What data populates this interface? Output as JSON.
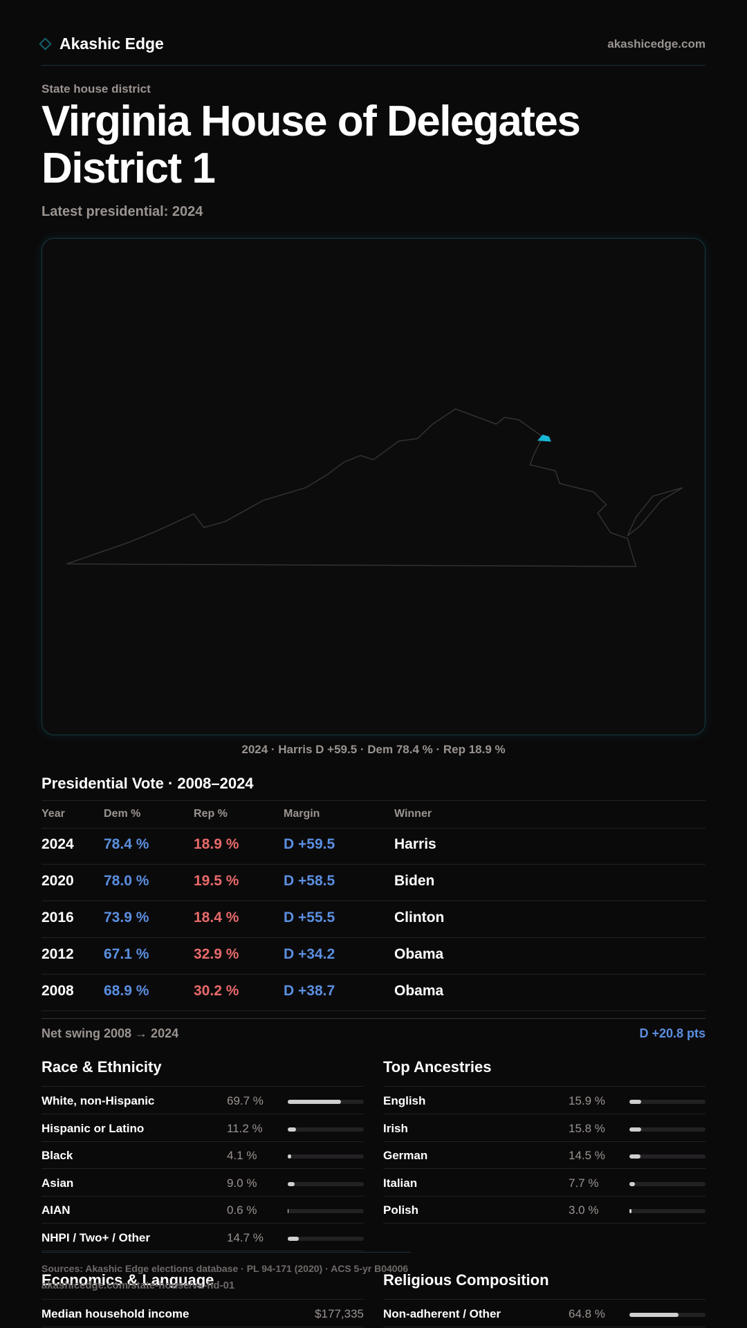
{
  "header": {
    "brand": "Akashic Edge",
    "site": "akashicedge.com"
  },
  "kicker": "State house district",
  "title": "Virginia House of Delegates District 1",
  "subtitle": "Latest presidential: 2024",
  "map_caption": "2024 · Harris D +59.5 · Dem 78.4 % · Rep 18.9 %",
  "presidential": {
    "title": "Presidential Vote · 2008–2024",
    "columns": [
      "Year",
      "Dem %",
      "Rep %",
      "Margin",
      "Winner"
    ],
    "rows": [
      [
        "2024",
        "78.4 %",
        "18.9 %",
        "D +59.5",
        "Harris"
      ],
      [
        "2020",
        "78.0 %",
        "19.5 %",
        "D +58.5",
        "Biden"
      ],
      [
        "2016",
        "73.9 %",
        "18.4 %",
        "D +55.5",
        "Clinton"
      ],
      [
        "2012",
        "67.1 %",
        "32.9 %",
        "D +34.2",
        "Obama"
      ],
      [
        "2008",
        "68.9 %",
        "30.2 %",
        "D +38.7",
        "Obama"
      ]
    ]
  },
  "net_swing": {
    "label": "Net swing 2008 → 2024",
    "value": "D +20.8 pts"
  },
  "race": {
    "title": "Race & Ethnicity",
    "xlim": [
      0,
      100
    ],
    "rows": [
      {
        "label": "White, non-Hispanic",
        "value": 69.7,
        "value_label": "69.7 %"
      },
      {
        "label": "Hispanic or Latino",
        "value": 11.2,
        "value_label": "11.2 %"
      },
      {
        "label": "Black",
        "value": 4.1,
        "value_label": "4.1 %"
      },
      {
        "label": "Asian",
        "value": 9.0,
        "value_label": "9.0 %"
      },
      {
        "label": "AIAN",
        "value": 0.6,
        "value_label": "0.6 %"
      },
      {
        "label": "NHPI / Two+ / Other",
        "value": 14.7,
        "value_label": "14.7 %"
      }
    ]
  },
  "ancestries": {
    "title": "Top Ancestries",
    "xlim": [
      0,
      100
    ],
    "rows": [
      {
        "label": "English",
        "value": 15.9,
        "value_label": "15.9 %"
      },
      {
        "label": "Irish",
        "value": 15.8,
        "value_label": "15.8 %"
      },
      {
        "label": "German",
        "value": 14.5,
        "value_label": "14.5 %"
      },
      {
        "label": "Italian",
        "value": 7.7,
        "value_label": "7.7 %"
      },
      {
        "label": "Polish",
        "value": 3.0,
        "value_label": "3.0 %"
      }
    ]
  },
  "footer": {
    "sources": "Sources: Akashic Edge elections database · PL 94-171 (2020) · ACS 5-yr B04006",
    "url": "akashicedge.com/state-house/va-hd-01"
  },
  "economics": {
    "title": "Economics & Language",
    "rows": [
      {
        "label": "Median household income",
        "value": "$177,335"
      }
    ]
  },
  "religion": {
    "title": "Religious Composition",
    "xlim": [
      0,
      100
    ],
    "rows": [
      {
        "label": "Non-adherent / Other",
        "value": 64.8,
        "value_label": "64.8 %"
      }
    ]
  }
}
